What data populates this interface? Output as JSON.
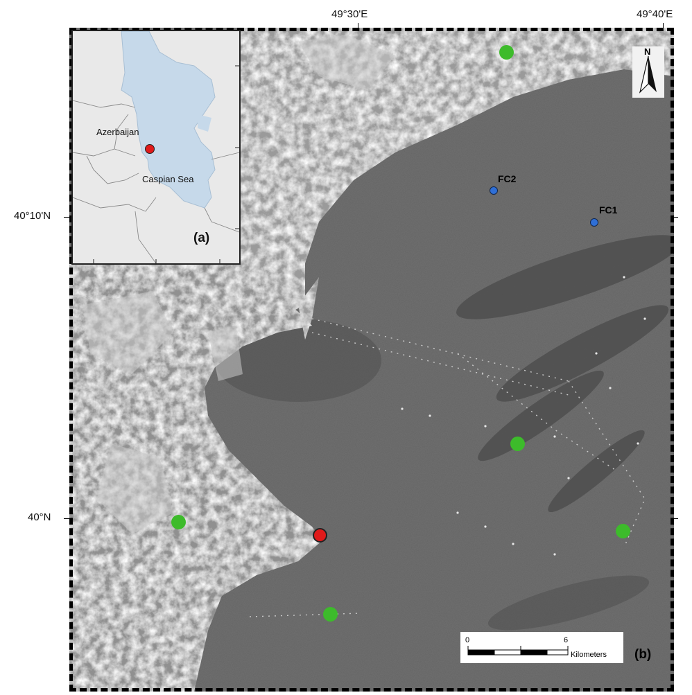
{
  "axes": {
    "top": [
      "49°30'E",
      "49°40'E"
    ],
    "left": [
      "40°10'N",
      "40°N"
    ]
  },
  "inset": {
    "country": "Azerbaijan",
    "sea": "Caspian Sea",
    "panel_label": "(a)"
  },
  "main": {
    "panel_label": "(b)",
    "points": {
      "fc1": "FC1",
      "fc2": "FC2"
    }
  },
  "north_arrow": "N",
  "scale": {
    "ticks": [
      "0",
      "6"
    ],
    "unit": "Kilometers"
  },
  "colors": {
    "station": "#3dbb2b",
    "site": "#e01a1a",
    "fc": "#2f6fd6",
    "water": "#6a6a6a",
    "inset_sea": "#c6d9ea"
  }
}
